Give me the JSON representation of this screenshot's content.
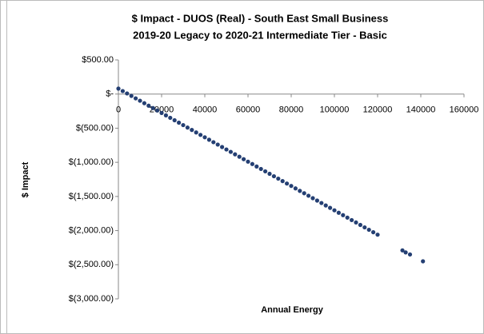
{
  "chart_data": {
    "type": "scatter",
    "title": "$ Impact - DUOS (Real) - South East Small Business",
    "subtitle": "2019-20 Legacy to 2020-21 Intermediate Tier - Basic",
    "x_label": "Annual Energy",
    "y_label": "$ Impact",
    "color": "#243f73",
    "grid": false,
    "xlim": [
      0,
      160000
    ],
    "xticks": [
      0,
      20000,
      40000,
      60000,
      80000,
      100000,
      120000,
      140000,
      160000
    ],
    "ylim": [
      -3000,
      500
    ],
    "yticks": [
      {
        "value": 500,
        "label": "$500.00"
      },
      {
        "value": 0,
        "label": "$-"
      },
      {
        "value": -500,
        "label": "$(500.00)"
      },
      {
        "value": -1000,
        "label": "$(1,000.00)"
      },
      {
        "value": -1500,
        "label": "$(1,500.00)"
      },
      {
        "value": -2000,
        "label": "$(2,000.00)"
      },
      {
        "value": -2500,
        "label": "$(2,500.00)"
      },
      {
        "value": -3000,
        "label": "$(3,000.00)"
      }
    ],
    "x": [
      0,
      2000,
      4000,
      6000,
      8000,
      10000,
      12000,
      14000,
      16000,
      18000,
      20000,
      22000,
      24000,
      26000,
      28000,
      30000,
      32000,
      34000,
      36000,
      38000,
      40000,
      42000,
      44000,
      46000,
      48000,
      50000,
      52000,
      54000,
      56000,
      58000,
      60000,
      62000,
      64000,
      66000,
      68000,
      70000,
      72000,
      74000,
      76000,
      78000,
      80000,
      82000,
      84000,
      86000,
      88000,
      90000,
      92000,
      94000,
      96000,
      98000,
      100000,
      102000,
      104000,
      106000,
      108000,
      110000,
      112000,
      114000,
      116000,
      118000,
      120000,
      131500,
      133000,
      135000,
      141000
    ],
    "values": [
      80,
      44,
      9,
      -27,
      -63,
      -98,
      -134,
      -170,
      -205,
      -241,
      -277,
      -312,
      -348,
      -384,
      -419,
      -455,
      -491,
      -526,
      -562,
      -598,
      -633,
      -669,
      -705,
      -740,
      -776,
      -812,
      -847,
      -883,
      -918,
      -954,
      -990,
      -1025,
      -1061,
      -1097,
      -1132,
      -1168,
      -1204,
      -1239,
      -1275,
      -1311,
      -1346,
      -1382,
      -1418,
      -1453,
      -1489,
      -1525,
      -1560,
      -1596,
      -1632,
      -1667,
      -1703,
      -1739,
      -1774,
      -1810,
      -1846,
      -1881,
      -1917,
      -1953,
      -1988,
      -2024,
      -2060,
      -2290,
      -2320,
      -2350,
      -2450
    ]
  }
}
